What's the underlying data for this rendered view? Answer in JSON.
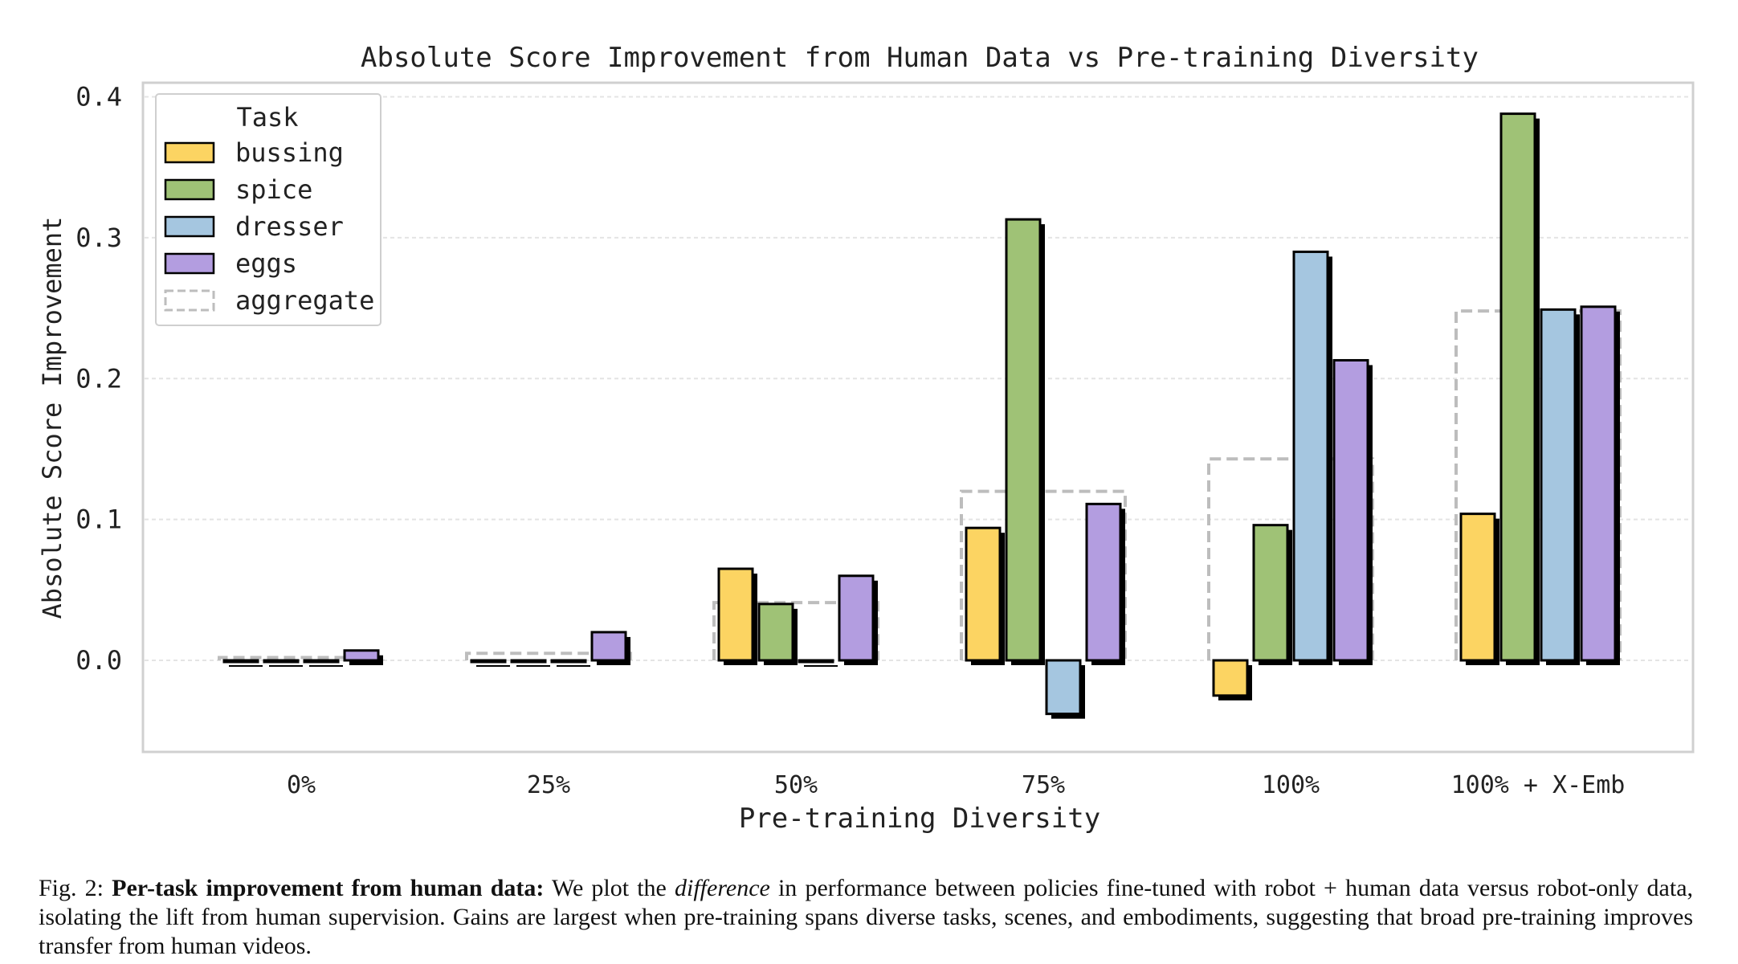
{
  "chart_data": {
    "type": "bar",
    "title": "Absolute Score Improvement from Human Data vs Pre-training Diversity",
    "xlabel": "Pre-training Diversity",
    "ylabel": "Absolute Score Improvement",
    "categories": [
      "0%",
      "25%",
      "50%",
      "75%",
      "100%",
      "100% + X-Emb"
    ],
    "ylim": [
      -0.065,
      0.41
    ],
    "yticks": [
      0.0,
      0.1,
      0.2,
      0.3,
      0.4
    ],
    "ytick_labels": [
      "0.0",
      "0.1",
      "0.2",
      "0.3",
      "0.4"
    ],
    "grid": true,
    "legend": {
      "title": "Task",
      "position": "top-left"
    },
    "series": [
      {
        "name": "bussing",
        "color": "#fcd462",
        "values": [
          0.0,
          0.0,
          0.065,
          0.094,
          -0.025,
          0.104
        ]
      },
      {
        "name": "spice",
        "color": "#9fc276",
        "values": [
          0.0,
          0.0,
          0.04,
          0.313,
          0.096,
          0.388
        ]
      },
      {
        "name": "dresser",
        "color": "#a5c6e0",
        "values": [
          0.0,
          0.0,
          0.0,
          -0.038,
          0.29,
          0.249
        ]
      },
      {
        "name": "eggs",
        "color": "#b39de0",
        "values": [
          0.007,
          0.02,
          0.06,
          0.111,
          0.213,
          0.251
        ]
      }
    ],
    "aggregate": {
      "name": "aggregate",
      "color": "#bdbdbd",
      "values": [
        0.002,
        0.005,
        0.041,
        0.12,
        0.143,
        0.248
      ]
    }
  },
  "caption": {
    "label": "Fig. 2:",
    "bold": "Per-task improvement from human data:",
    "pre": "We plot the",
    "italic": "difference",
    "rest": "in performance between policies fine-tuned with robot + human data versus robot-only data, isolating the lift from human supervision. Gains are largest when pre-training spans diverse tasks, scenes, and embodiments, suggesting that broad pre-training improves transfer from human videos."
  }
}
